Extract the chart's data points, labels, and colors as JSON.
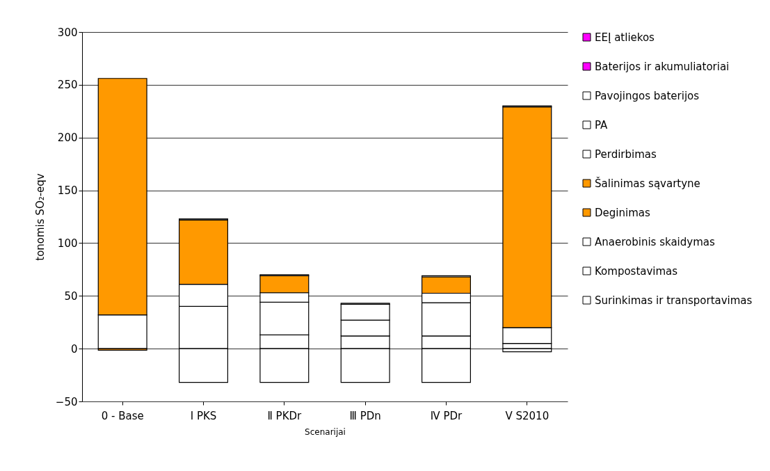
{
  "chart_data": {
    "type": "bar",
    "stacked": true,
    "xlabel": "Scenarijai",
    "ylabel": "tonomis SO₂-eqv",
    "categories": [
      "0 - Base",
      "I PKS",
      "Ⅱ PKDr",
      "Ⅲ PDn",
      "Ⅳ PDr",
      "V S2010"
    ],
    "series": [
      {
        "name": "Surinkimas ir transportavimas",
        "color": "#ffffff",
        "values": [
          32,
          40,
          13,
          12,
          12,
          5
        ]
      },
      {
        "name": "Kompostavimas",
        "color": "#ffffff",
        "values": [
          null,
          21,
          31,
          15,
          31.5,
          15
        ]
      },
      {
        "name": "Anaerobinis skaidymas",
        "color": "#ffffff",
        "values": [
          null,
          null,
          9,
          15,
          9,
          null
        ]
      },
      {
        "name": "Deginimas",
        "color": "#ff9900",
        "values": [
          -1.5,
          null,
          16,
          null,
          15.5,
          null
        ]
      },
      {
        "name": "Šalinimas sąvartyne",
        "color": "#ff9900",
        "values": [
          224,
          61,
          null,
          null,
          null,
          209
        ]
      },
      {
        "name": "Perdirbimas",
        "color": "#ffffff",
        "values": [
          null,
          -32,
          -32,
          -32,
          -32,
          -3
        ]
      },
      {
        "name": "PA",
        "color": "#ffffff",
        "values": [
          null,
          1,
          1,
          1,
          1,
          1
        ]
      },
      {
        "name": "Pavojingos baterijos",
        "color": "#ffffff",
        "values": [
          null,
          null,
          null,
          null,
          null,
          null
        ]
      },
      {
        "name": "Baterijos ir akumuliatoriai",
        "color": "#ff00ff",
        "values": [
          null,
          null,
          null,
          null,
          null,
          null
        ]
      },
      {
        "name": "EEĮ atliekos",
        "color": "#ff00ff",
        "values": [
          null,
          null,
          null,
          null,
          null,
          null
        ]
      }
    ],
    "ylim": [
      -50,
      300
    ],
    "yticks": [
      -50,
      0,
      50,
      100,
      150,
      200,
      250,
      300
    ],
    "grid": "y",
    "legend": "right"
  }
}
